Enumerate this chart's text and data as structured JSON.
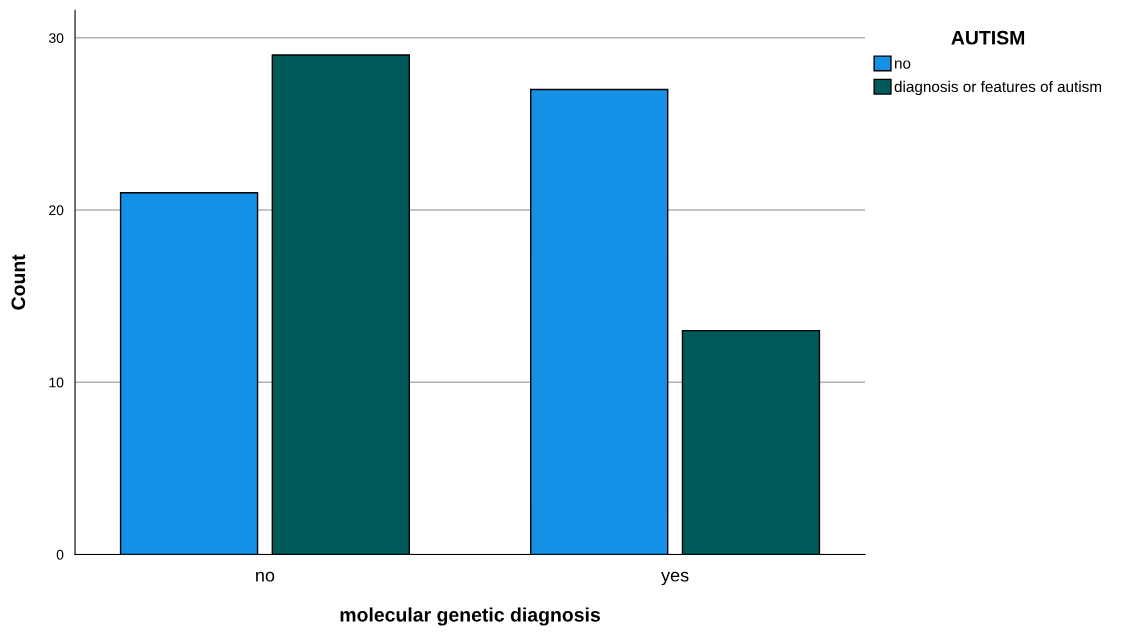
{
  "chart_data": {
    "type": "bar",
    "xlabel": "molecular genetic diagnosis",
    "ylabel": "Count",
    "legend_title": "AUTISM",
    "categories": [
      "no",
      "yes"
    ],
    "series": [
      {
        "name": "no",
        "color": "#1490e6",
        "values": [
          21,
          27
        ]
      },
      {
        "name": "diagnosis or features of autism",
        "color": "#005a5a",
        "values": [
          29,
          13
        ]
      }
    ],
    "ylim": [
      0,
      31.6
    ],
    "yticks": [
      0,
      10,
      20,
      30
    ],
    "grid": "y",
    "legend": "top right"
  }
}
